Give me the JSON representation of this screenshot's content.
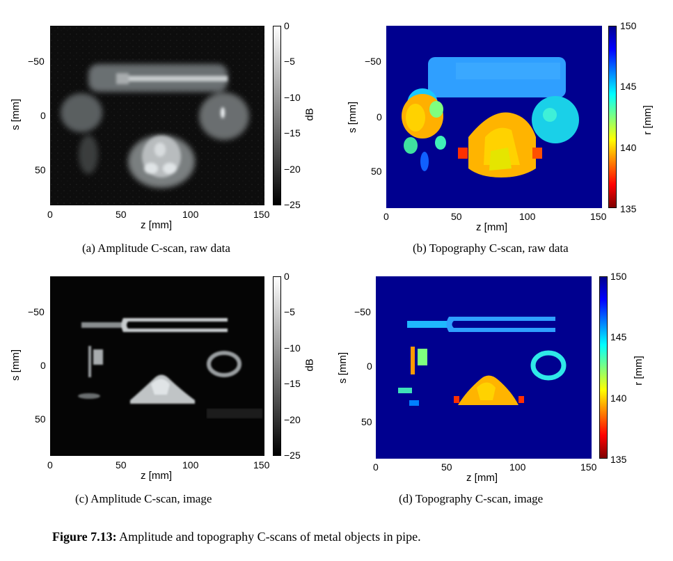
{
  "colors": {
    "jet_background": "#00008f",
    "jet_colormap": [
      "#7f0000",
      "#ff0000",
      "#ff7f00",
      "#ffff00",
      "#7fff7f",
      "#00ffff",
      "#007fff",
      "#0000ff",
      "#00008f"
    ],
    "gray_colormap": [
      "#000000",
      "#ffffff"
    ]
  },
  "panels": [
    {
      "id": "a",
      "caption": "(a) Amplitude C-scan, raw data",
      "xlabel": "z [mm]",
      "ylabel": "s [mm]",
      "xticks": [
        "0",
        "50",
        "100",
        "150"
      ],
      "yticks": [
        "−50",
        "0",
        "50"
      ],
      "colorbar_label": "dB",
      "colorbar_ticks": [
        "0",
        "−5",
        "−10",
        "−15",
        "−20",
        "−25"
      ],
      "colormap": "gray"
    },
    {
      "id": "b",
      "caption": "(b) Topography C-scan, raw data",
      "xlabel": "z [mm]",
      "ylabel": "s [mm]",
      "xticks": [
        "0",
        "50",
        "100",
        "150"
      ],
      "yticks": [
        "−50",
        "0",
        "50"
      ],
      "colorbar_label": "r [mm]",
      "colorbar_ticks": [
        "150",
        "145",
        "140",
        "135"
      ],
      "colormap": "jet"
    },
    {
      "id": "c",
      "caption": "(c) Amplitude C-scan, image",
      "xlabel": "z [mm]",
      "ylabel": "s [mm]",
      "xticks": [
        "0",
        "50",
        "100",
        "150"
      ],
      "yticks": [
        "−50",
        "0",
        "50"
      ],
      "colorbar_label": "dB",
      "colorbar_ticks": [
        "0",
        "−5",
        "−10",
        "−15",
        "−20",
        "−25"
      ],
      "colormap": "gray"
    },
    {
      "id": "d",
      "caption": "(d) Topography C-scan, image",
      "xlabel": "z [mm]",
      "ylabel": "s [mm]",
      "xticks": [
        "0",
        "50",
        "100",
        "150"
      ],
      "yticks": [
        "−50",
        "0",
        "50"
      ],
      "colorbar_label": "r [mm]",
      "colorbar_ticks": [
        "150",
        "145",
        "140",
        "135"
      ],
      "colormap": "jet"
    }
  ],
  "figure": {
    "label": "Figure 7.13:",
    "text": " Amplitude and topography C-scans of metal objects in pipe."
  }
}
